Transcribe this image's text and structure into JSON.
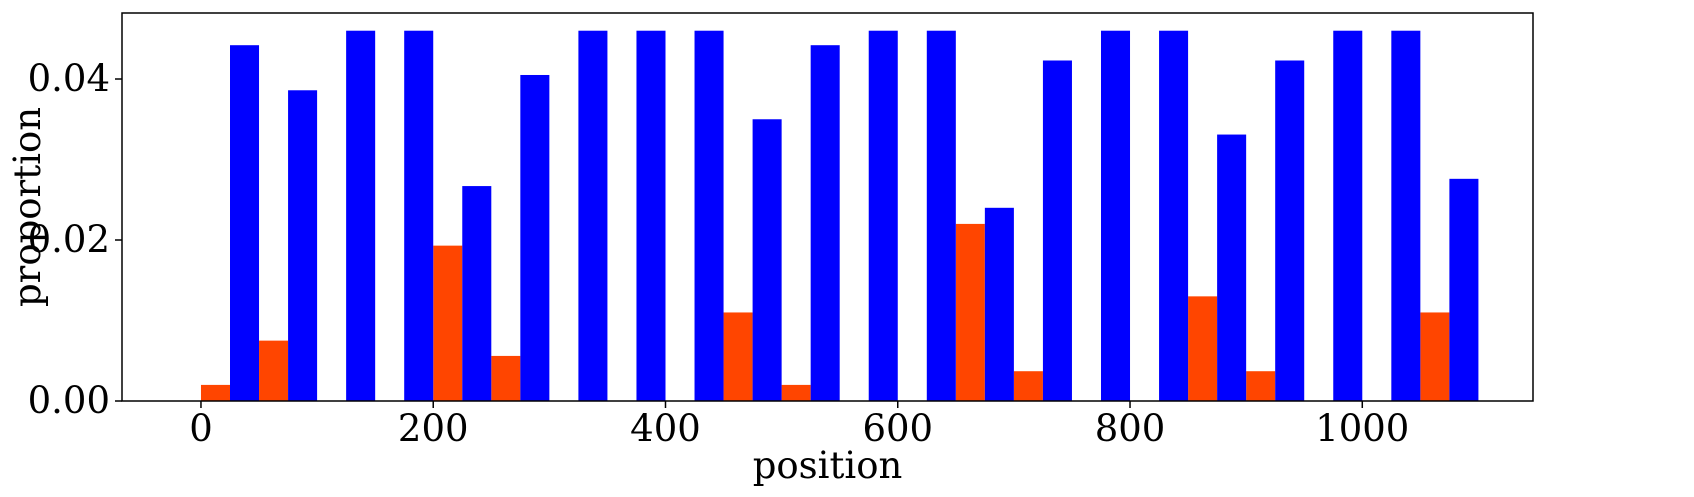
{
  "chart_data": {
    "type": "bar",
    "xlabel": "position",
    "ylabel": "proportion",
    "xlim": [
      -68,
      1147
    ],
    "ylim": [
      0,
      0.0482
    ],
    "x_ticks": [
      0,
      200,
      400,
      600,
      800,
      1000
    ],
    "x_tick_labels": [
      "0",
      "200",
      "400",
      "600",
      "800",
      "1000"
    ],
    "y_ticks": [
      0.0,
      0.02,
      0.04
    ],
    "y_tick_labels": [
      "0.00",
      "0.02",
      "0.04"
    ],
    "grid": false,
    "legend": "none",
    "bar_width": 25,
    "series": [
      {
        "color": "#ff4500",
        "bars": [
          {
            "x": 0,
            "value": 0.002
          },
          {
            "x": 50,
            "value": 0.0075
          },
          {
            "x": 200,
            "value": 0.0193
          },
          {
            "x": 250,
            "value": 0.0056
          },
          {
            "x": 450,
            "value": 0.011
          },
          {
            "x": 500,
            "value": 0.002
          },
          {
            "x": 650,
            "value": 0.022
          },
          {
            "x": 700,
            "value": 0.0037
          },
          {
            "x": 850,
            "value": 0.013
          },
          {
            "x": 900,
            "value": 0.0037
          },
          {
            "x": 1050,
            "value": 0.011
          }
        ]
      },
      {
        "color": "#0000ff",
        "bars": [
          {
            "x": 25,
            "value": 0.0442
          },
          {
            "x": 75,
            "value": 0.0386
          },
          {
            "x": 125,
            "value": 0.046
          },
          {
            "x": 175,
            "value": 0.046
          },
          {
            "x": 225,
            "value": 0.0267
          },
          {
            "x": 275,
            "value": 0.0405
          },
          {
            "x": 325,
            "value": 0.046
          },
          {
            "x": 375,
            "value": 0.046
          },
          {
            "x": 425,
            "value": 0.046
          },
          {
            "x": 475,
            "value": 0.035
          },
          {
            "x": 525,
            "value": 0.0442
          },
          {
            "x": 575,
            "value": 0.046
          },
          {
            "x": 625,
            "value": 0.046
          },
          {
            "x": 675,
            "value": 0.024
          },
          {
            "x": 725,
            "value": 0.0423
          },
          {
            "x": 775,
            "value": 0.046
          },
          {
            "x": 825,
            "value": 0.046
          },
          {
            "x": 875,
            "value": 0.0331
          },
          {
            "x": 925,
            "value": 0.0423
          },
          {
            "x": 975,
            "value": 0.046
          },
          {
            "x": 1025,
            "value": 0.046
          },
          {
            "x": 1075,
            "value": 0.0276
          }
        ]
      }
    ]
  }
}
